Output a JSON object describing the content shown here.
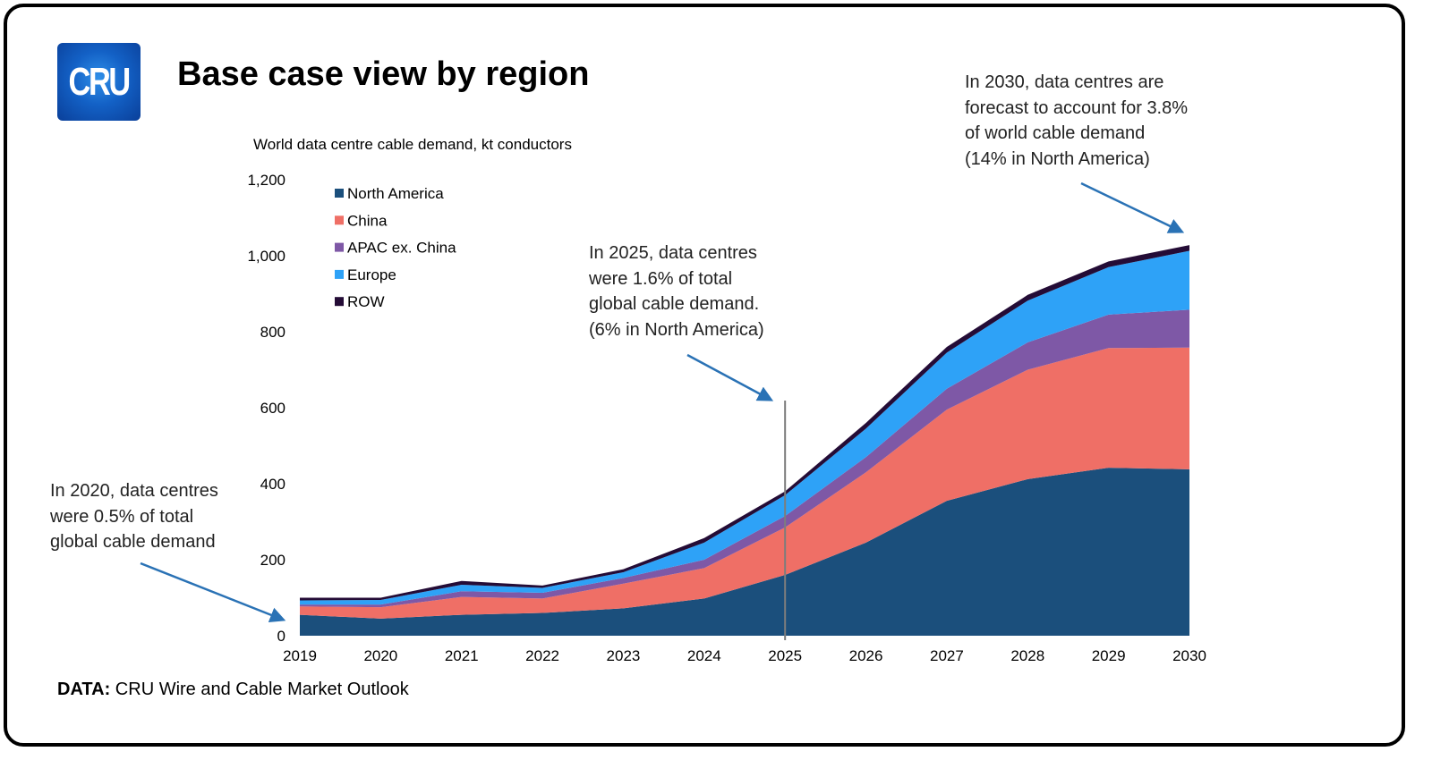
{
  "logo": {
    "text": "CRU"
  },
  "title": "Base case view by region",
  "source": {
    "label": "DATA:",
    "text": " CRU Wire and Cable Market Outlook"
  },
  "annotations": [
    {
      "id": "a2020",
      "text": "In 2020, data centres\nwere 0.5% of total\nglobal cable demand"
    },
    {
      "id": "a2025",
      "text": "In 2025, data centres\nwere 1.6% of total\nglobal cable demand.\n(6% in North America)"
    },
    {
      "id": "a2030",
      "text": "In 2030, data centres are\nforecast to account for 3.8%\nof world cable demand\n(14% in North America)"
    }
  ],
  "chart_data": {
    "type": "area",
    "stacked": true,
    "title": "World data centre cable demand, kt conductors",
    "x": [
      2019,
      2020,
      2021,
      2022,
      2023,
      2024,
      2025,
      2026,
      2027,
      2028,
      2029,
      2030
    ],
    "ylim": [
      0,
      1200
    ],
    "yticks": [
      0,
      200,
      400,
      600,
      800,
      1000,
      1200
    ],
    "ytick_labels": [
      "0",
      "200",
      "400",
      "600",
      "800",
      "1,000",
      "1,200"
    ],
    "legend_position": "top-left",
    "grid": false,
    "vertical_marker_x": 2025,
    "series": [
      {
        "name": "North America",
        "color": "#1b4f7c",
        "values": [
          55,
          45,
          55,
          60,
          72,
          98,
          160,
          245,
          355,
          412,
          442,
          438
        ]
      },
      {
        "name": "China",
        "color": "#ef6f66",
        "values": [
          22,
          30,
          47,
          38,
          65,
          80,
          125,
          185,
          240,
          288,
          315,
          320
        ]
      },
      {
        "name": "APAC ex. China",
        "color": "#7e58a6",
        "values": [
          5,
          7,
          15,
          15,
          15,
          22,
          30,
          40,
          55,
          72,
          88,
          100
        ]
      },
      {
        "name": "Europe",
        "color": "#2ea2f7",
        "values": [
          11,
          12,
          17,
          13,
          15,
          45,
          55,
          75,
          95,
          110,
          125,
          155
        ]
      },
      {
        "name": "ROW",
        "color": "#240c36",
        "values": [
          7,
          6,
          10,
          6,
          8,
          12,
          10,
          15,
          15,
          15,
          15,
          15
        ]
      }
    ]
  }
}
